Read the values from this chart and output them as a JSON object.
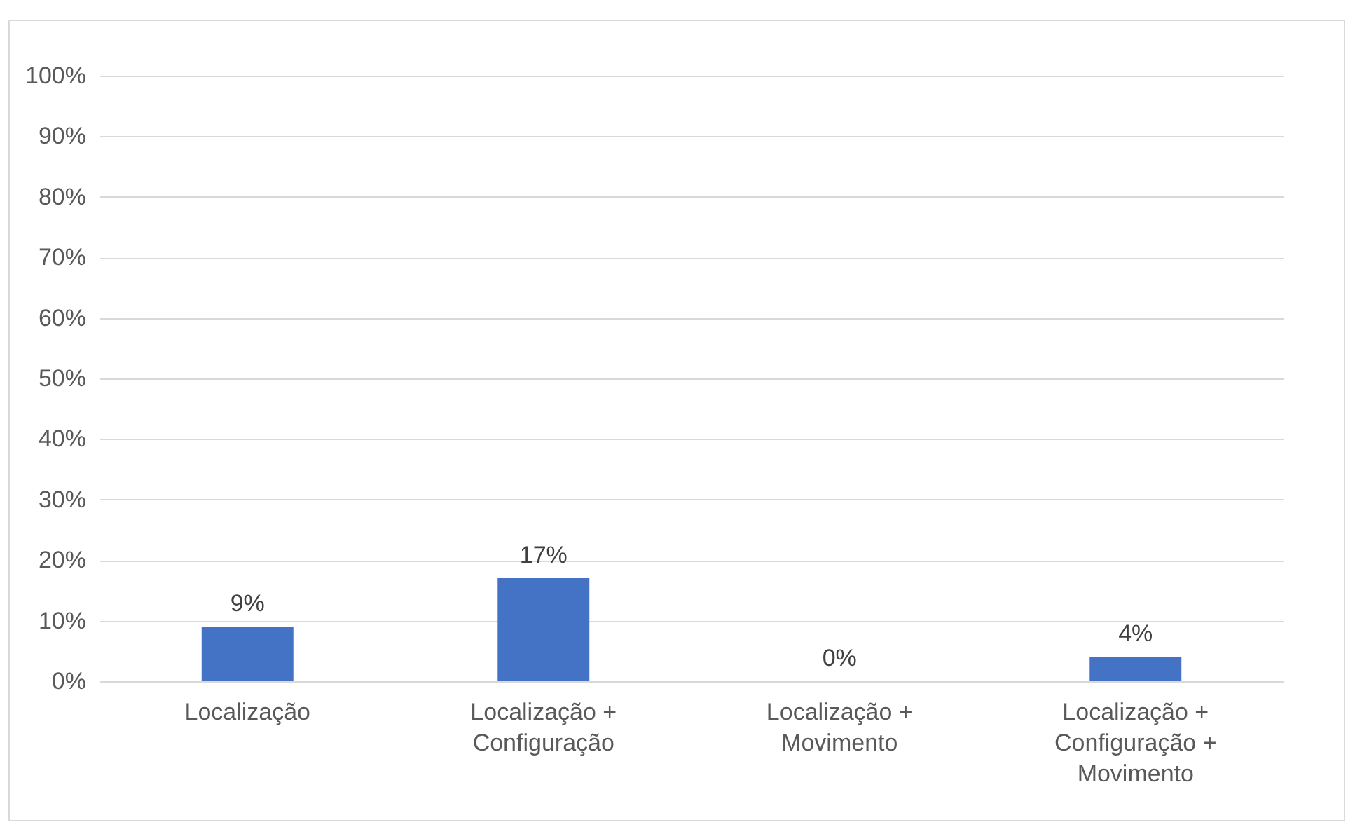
{
  "chart_data": {
    "type": "bar",
    "categories": [
      "Localização",
      "Localização +\nConfiguração",
      "Localização +\nMovimento",
      "Localização +\nConfiguração +\nMovimento"
    ],
    "values": [
      9,
      17,
      0,
      4
    ],
    "value_labels": [
      "9%",
      "17%",
      "0%",
      "4%"
    ],
    "color": "#4472c4",
    "ylim": [
      0,
      100
    ],
    "yticks": [
      {
        "value": 0,
        "label": "0%"
      },
      {
        "value": 10,
        "label": "10%"
      },
      {
        "value": 20,
        "label": "20%"
      },
      {
        "value": 30,
        "label": "30%"
      },
      {
        "value": 40,
        "label": "40%"
      },
      {
        "value": 50,
        "label": "50%"
      },
      {
        "value": 60,
        "label": "60%"
      },
      {
        "value": 70,
        "label": "70%"
      },
      {
        "value": 80,
        "label": "80%"
      },
      {
        "value": 90,
        "label": "90%"
      },
      {
        "value": 100,
        "label": "100%"
      }
    ],
    "grid": "y"
  }
}
